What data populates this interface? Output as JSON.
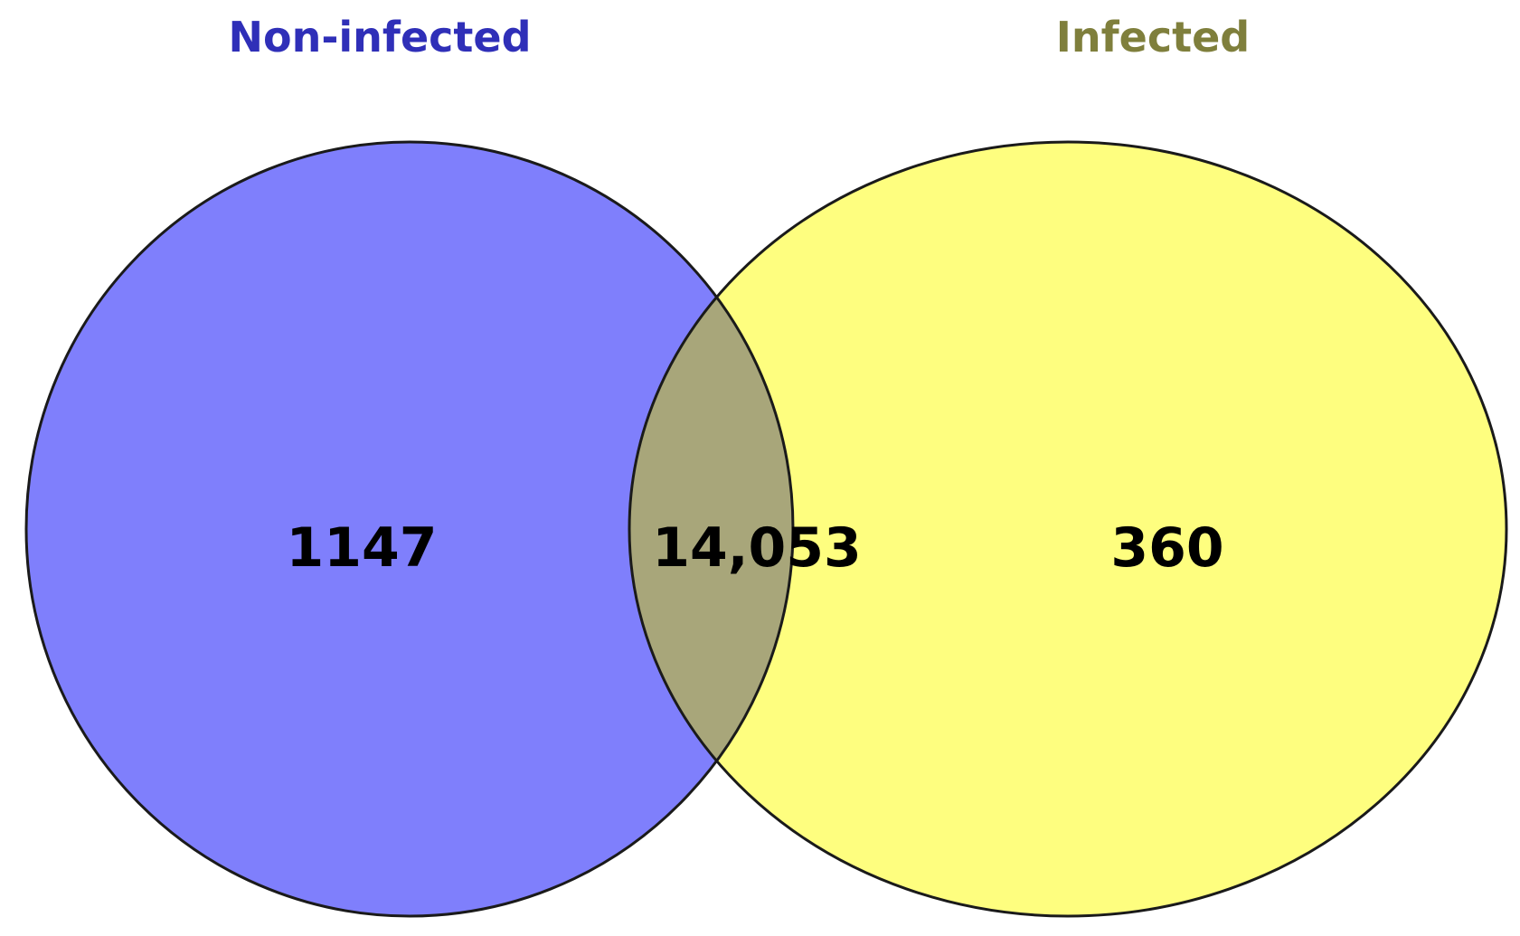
{
  "sets": [
    {
      "name": "Non-infected",
      "label_color": "#2f2fb8",
      "fill": "#7f7ffc"
    },
    {
      "name": "Infected",
      "label_color": "#7f7f3c",
      "fill": "#fefe7f"
    }
  ],
  "regions": {
    "non_infected_only": "1147",
    "shared": "14,053",
    "infected_only": "360"
  },
  "colors": {
    "overlap_fill": "#a8a67a",
    "outline": "#1a1a1a"
  }
}
